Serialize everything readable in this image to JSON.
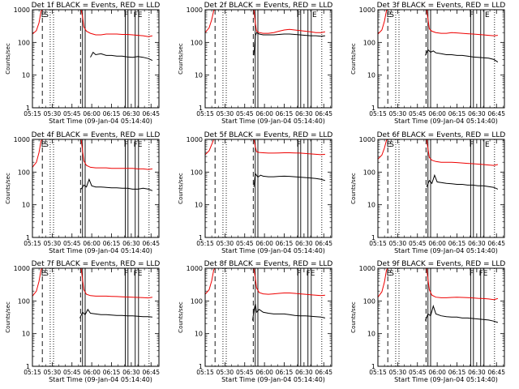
{
  "x_tick_labels": [
    "05:15",
    "05:30",
    "05:45",
    "06:00",
    "06:15",
    "06:30",
    "06:45"
  ],
  "x_tick_minutes": [
    0,
    15,
    30,
    45,
    60,
    75,
    90
  ],
  "y_tick_labels": [
    "1",
    "10",
    "100",
    "1000"
  ],
  "x_axis_title": "Start Time (09-Jan-04 05:14:40)",
  "y_axis_title": "Counts/sec",
  "colors": {
    "events": "#000000",
    "lld": "#ee0000"
  },
  "chart_data": [
    {
      "type": "line",
      "title": "Det 1f BLACK = Events, RED = LLD",
      "ylog": true,
      "ylim": [
        1,
        1000
      ],
      "xrange_min": [
        0,
        96
      ],
      "series": [
        {
          "name": "BLACK = Events",
          "color": "#000000",
          "x": [
            44,
            46,
            48,
            52,
            56,
            60,
            64,
            68,
            72,
            76,
            80,
            84,
            88,
            91
          ],
          "y": [
            35,
            50,
            42,
            45,
            40,
            40,
            38,
            38,
            36,
            35,
            37,
            35,
            32,
            28
          ]
        },
        {
          "name": "RED = LLD",
          "color": "#ee0000",
          "x": [
            0,
            3,
            5,
            6.5,
            7.5,
            37,
            38,
            39,
            41,
            44,
            48,
            52,
            56,
            60,
            64,
            68,
            72,
            76,
            80,
            84,
            88,
            91
          ],
          "y": [
            180,
            230,
            400,
            900,
            1000,
            1000,
            600,
            300,
            220,
            190,
            170,
            170,
            180,
            180,
            180,
            175,
            175,
            170,
            165,
            160,
            150,
            160
          ]
        }
      ],
      "markers": [
        {
          "label": "E",
          "min": 8.3
        },
        {
          "label": "S",
          "min": 10.5
        }
      ],
      "annotations": [
        {
          "text": "F",
          "min": 71
        },
        {
          "text": "FE",
          "min": 80
        }
      ]
    },
    {
      "type": "line",
      "title": "Det 2f BLACK = Events, RED = LLD",
      "ylog": true,
      "ylim": [
        1,
        1000
      ],
      "xrange_min": [
        0,
        96
      ],
      "series": [
        {
          "name": "BLACK = Events",
          "color": "#000000",
          "x": [
            37,
            38,
            39,
            41,
            44,
            48,
            52,
            56,
            60,
            64,
            68,
            72,
            76,
            80,
            84,
            88,
            91
          ],
          "y": [
            40,
            160,
            200,
            180,
            170,
            170,
            170,
            175,
            180,
            180,
            175,
            170,
            165,
            160,
            160,
            155,
            160
          ]
        },
        {
          "name": "RED = LLD",
          "color": "#ee0000",
          "x": [
            0,
            3,
            5,
            6.5,
            7.5,
            37,
            38,
            39,
            41,
            44,
            48,
            52,
            56,
            60,
            64,
            68,
            72,
            76,
            80,
            84,
            88,
            91
          ],
          "y": [
            200,
            280,
            500,
            950,
            1000,
            1000,
            400,
            220,
            200,
            190,
            190,
            200,
            220,
            240,
            250,
            240,
            230,
            220,
            210,
            200,
            200,
            210
          ]
        }
      ],
      "markers": [],
      "annotations": [
        {
          "text": "F",
          "min": 71
        },
        {
          "text": "E",
          "min": 83
        }
      ]
    },
    {
      "type": "line",
      "title": "Det 3f BLACK = Events, RED = LLD",
      "ylog": true,
      "ylim": [
        1,
        1000
      ],
      "xrange_min": [
        0,
        96
      ],
      "series": [
        {
          "name": "BLACK = Events",
          "color": "#000000",
          "x": [
            36,
            38,
            40,
            42,
            44,
            48,
            52,
            56,
            60,
            64,
            68,
            72,
            76,
            80,
            84,
            88,
            91
          ],
          "y": [
            40,
            60,
            50,
            55,
            48,
            45,
            42,
            42,
            40,
            40,
            38,
            36,
            35,
            34,
            33,
            30,
            25
          ]
        },
        {
          "name": "RED = LLD",
          "color": "#ee0000",
          "x": [
            0,
            3,
            5,
            6.5,
            7.5,
            37,
            38,
            39,
            41,
            44,
            48,
            52,
            56,
            60,
            64,
            68,
            72,
            76,
            80,
            84,
            88,
            91
          ],
          "y": [
            180,
            240,
            450,
            950,
            1000,
            1000,
            500,
            260,
            220,
            200,
            190,
            190,
            200,
            195,
            190,
            185,
            180,
            175,
            170,
            165,
            160,
            165
          ]
        }
      ],
      "markers": [
        {
          "label": "E",
          "min": 8.3
        },
        {
          "label": "S",
          "min": 10.5
        }
      ],
      "annotations": [
        {
          "text": "F",
          "min": 71
        },
        {
          "text": "E",
          "min": 83
        }
      ]
    },
    {
      "type": "line",
      "title": "Det 4f BLACK = Events, RED = LLD",
      "ylog": true,
      "ylim": [
        1,
        1000
      ],
      "xrange_min": [
        0,
        96
      ],
      "series": [
        {
          "name": "BLACK = Events",
          "color": "#000000",
          "x": [
            37,
            39,
            41,
            43,
            45,
            48,
            52,
            56,
            60,
            64,
            68,
            72,
            76,
            80,
            84,
            88,
            91
          ],
          "y": [
            30,
            40,
            35,
            60,
            38,
            35,
            35,
            34,
            33,
            33,
            32,
            32,
            30,
            30,
            32,
            30,
            27
          ]
        },
        {
          "name": "RED = LLD",
          "color": "#ee0000",
          "x": [
            0,
            3,
            5,
            6.5,
            7.5,
            37,
            38,
            39,
            41,
            44,
            48,
            52,
            56,
            60,
            64,
            68,
            72,
            76,
            80,
            84,
            88,
            91
          ],
          "y": [
            140,
            200,
            400,
            900,
            1000,
            1000,
            450,
            220,
            160,
            140,
            135,
            135,
            135,
            130,
            130,
            130,
            130,
            130,
            125,
            125,
            120,
            125
          ]
        }
      ],
      "markers": [
        {
          "label": "E",
          "min": 8.3
        },
        {
          "label": "S",
          "min": 10.5
        }
      ],
      "annotations": [
        {
          "text": "F",
          "min": 71
        },
        {
          "text": "FE",
          "min": 80
        }
      ]
    },
    {
      "type": "line",
      "title": "Det 5f BLACK = Events, RED = LLD",
      "ylog": true,
      "ylim": [
        1,
        1000
      ],
      "xrange_min": [
        0,
        96
      ],
      "series": [
        {
          "name": "BLACK = Events",
          "color": "#000000",
          "x": [
            37,
            38,
            40,
            42,
            44,
            48,
            52,
            56,
            60,
            64,
            68,
            72,
            76,
            80,
            84,
            88,
            91
          ],
          "y": [
            35,
            90,
            70,
            80,
            75,
            72,
            72,
            74,
            75,
            74,
            72,
            70,
            68,
            66,
            64,
            60,
            55
          ]
        },
        {
          "name": "RED = LLD",
          "color": "#ee0000",
          "x": [
            0,
            3,
            5,
            6.5,
            7.5,
            37,
            38,
            39,
            41,
            44,
            48,
            52,
            56,
            60,
            64,
            68,
            72,
            76,
            80,
            84,
            88,
            91
          ],
          "y": [
            340,
            450,
            700,
            1000,
            1000,
            1000,
            600,
            420,
            400,
            390,
            380,
            380,
            385,
            390,
            390,
            385,
            380,
            370,
            360,
            350,
            340,
            350
          ]
        }
      ],
      "markers": [],
      "annotations": [
        {
          "text": "F",
          "min": 71
        }
      ]
    },
    {
      "type": "line",
      "title": "Det 6f BLACK = Events, RED = LLD",
      "ylog": true,
      "ylim": [
        1,
        1000
      ],
      "xrange_min": [
        0,
        96
      ],
      "series": [
        {
          "name": "BLACK = Events",
          "color": "#000000",
          "x": [
            37,
            39,
            41,
            43,
            45,
            48,
            52,
            56,
            60,
            64,
            68,
            72,
            76,
            80,
            84,
            88,
            91
          ],
          "y": [
            35,
            55,
            45,
            80,
            50,
            48,
            45,
            44,
            42,
            42,
            40,
            40,
            38,
            38,
            36,
            34,
            30
          ]
        },
        {
          "name": "RED = LLD",
          "color": "#ee0000",
          "x": [
            0,
            3,
            5,
            6.5,
            7.5,
            37,
            38,
            39,
            41,
            44,
            48,
            52,
            56,
            60,
            64,
            68,
            72,
            76,
            80,
            84,
            88,
            91
          ],
          "y": [
            250,
            330,
            550,
            950,
            1000,
            1000,
            500,
            280,
            230,
            210,
            200,
            200,
            200,
            195,
            190,
            185,
            180,
            175,
            170,
            165,
            160,
            170
          ]
        }
      ],
      "markers": [
        {
          "label": "E",
          "min": 8.3
        },
        {
          "label": "S",
          "min": 10.5
        }
      ],
      "annotations": [
        {
          "text": "F",
          "min": 71
        },
        {
          "text": "E",
          "min": 83
        }
      ]
    },
    {
      "type": "line",
      "title": "Det 7f BLACK = Events, RED = LLD",
      "ylog": true,
      "ylim": [
        1,
        1000
      ],
      "xrange_min": [
        0,
        96
      ],
      "series": [
        {
          "name": "BLACK = Events",
          "color": "#000000",
          "x": [
            36,
            38,
            40,
            42,
            44,
            48,
            52,
            56,
            60,
            64,
            68,
            72,
            76,
            80,
            84,
            88,
            91
          ],
          "y": [
            30,
            45,
            38,
            55,
            42,
            40,
            38,
            38,
            37,
            36,
            36,
            35,
            35,
            34,
            33,
            33,
            32
          ]
        },
        {
          "name": "RED = LLD",
          "color": "#ee0000",
          "x": [
            0,
            3,
            5,
            6.5,
            7.5,
            37,
            38,
            39,
            41,
            44,
            48,
            52,
            56,
            60,
            64,
            68,
            72,
            76,
            80,
            84,
            88,
            91
          ],
          "y": [
            140,
            200,
            400,
            900,
            1000,
            1000,
            450,
            220,
            160,
            145,
            140,
            140,
            140,
            138,
            136,
            134,
            132,
            130,
            128,
            126,
            124,
            130
          ]
        }
      ],
      "markers": [
        {
          "label": "E",
          "min": 8.3
        },
        {
          "label": "S",
          "min": 10.5
        }
      ],
      "annotations": [
        {
          "text": "F",
          "min": 71
        },
        {
          "text": "FE",
          "min": 80
        }
      ]
    },
    {
      "type": "line",
      "title": "Det 8f BLACK = Events, RED = LLD",
      "ylog": true,
      "ylim": [
        1,
        1000
      ],
      "xrange_min": [
        0,
        96
      ],
      "series": [
        {
          "name": "BLACK = Events",
          "color": "#000000",
          "x": [
            36,
            37,
            38,
            39,
            41,
            44,
            48,
            52,
            56,
            60,
            64,
            68,
            72,
            76,
            80,
            84,
            88,
            91
          ],
          "y": [
            25,
            50,
            80,
            45,
            55,
            45,
            42,
            40,
            40,
            40,
            38,
            36,
            35,
            35,
            34,
            33,
            32,
            30
          ]
        },
        {
          "name": "RED = LLD",
          "color": "#ee0000",
          "x": [
            0,
            3,
            5,
            6.5,
            7.5,
            37,
            38,
            39,
            41,
            44,
            48,
            52,
            56,
            60,
            64,
            68,
            72,
            76,
            80,
            84,
            88,
            91
          ],
          "y": [
            160,
            220,
            420,
            900,
            1000,
            1000,
            500,
            250,
            180,
            165,
            160,
            165,
            170,
            175,
            175,
            170,
            165,
            160,
            155,
            150,
            145,
            150
          ]
        }
      ],
      "markers": [],
      "annotations": [
        {
          "text": "F",
          "min": 71
        },
        {
          "text": "FE",
          "min": 80
        }
      ]
    },
    {
      "type": "line",
      "title": "Det 9f BLACK = Events, RED = LLD",
      "ylog": true,
      "ylim": [
        1,
        1000
      ],
      "xrange_min": [
        0,
        96
      ],
      "series": [
        {
          "name": "BLACK = Events",
          "color": "#000000",
          "x": [
            36,
            38,
            40,
            42,
            44,
            48,
            52,
            56,
            60,
            64,
            68,
            72,
            76,
            80,
            84,
            88,
            91
          ],
          "y": [
            25,
            40,
            35,
            70,
            40,
            35,
            33,
            32,
            32,
            30,
            30,
            29,
            28,
            27,
            26,
            24,
            22
          ]
        },
        {
          "name": "RED = LLD",
          "color": "#ee0000",
          "x": [
            0,
            3,
            5,
            6.5,
            7.5,
            37,
            38,
            39,
            41,
            44,
            48,
            52,
            56,
            60,
            64,
            68,
            72,
            76,
            80,
            84,
            88,
            91
          ],
          "y": [
            130,
            190,
            380,
            880,
            1000,
            1000,
            450,
            220,
            150,
            130,
            125,
            125,
            128,
            130,
            128,
            126,
            124,
            120,
            118,
            115,
            110,
            118
          ]
        }
      ],
      "markers": [
        {
          "label": "E",
          "min": 8.3
        },
        {
          "label": "S",
          "min": 10.5
        }
      ],
      "annotations": [
        {
          "text": "F",
          "min": 71
        },
        {
          "text": "FE",
          "min": 80
        }
      ]
    }
  ]
}
